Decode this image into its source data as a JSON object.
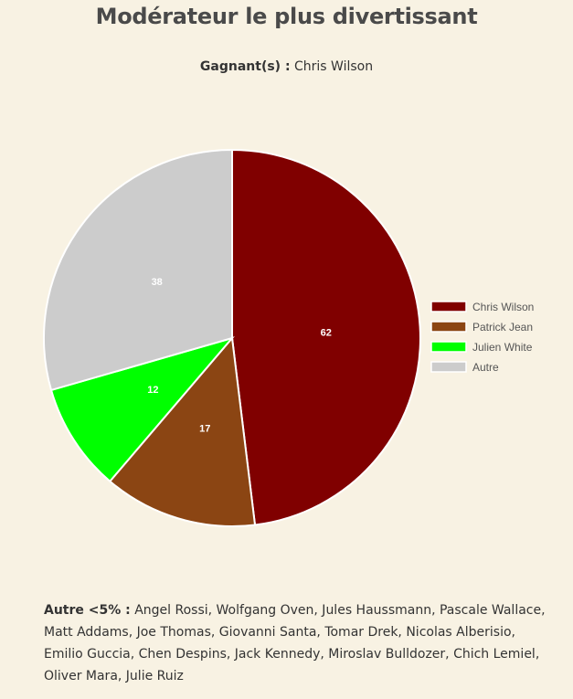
{
  "page": {
    "title": "Modérateur le plus divertissant",
    "winner_label": "Gagnant(s) :",
    "winner_value": "Chris Wilson",
    "others_label": "Autre <5% :",
    "others_value": "Angel Rossi, Wolfgang Oven, Jules Haussmann, Pascale Wallace, Matt Addams, Joe Thomas, Giovanni Santa, Tomar Drek, Nicolas Alberisio, Emilio Guccia, Chen Despins, Jack Kennedy, Miroslav Bulldozer, Chich Lemiel, Oliver Mara, Julie Ruiz"
  },
  "chart_data": {
    "type": "pie",
    "title": "",
    "legend_position": "right",
    "slices": [
      {
        "label": "Chris Wilson",
        "value": 62,
        "color": "#800000"
      },
      {
        "label": "Patrick Jean",
        "value": 17,
        "color": "#8b4513"
      },
      {
        "label": "Julien White",
        "value": 12,
        "color": "#00ff00"
      },
      {
        "label": "Autre",
        "value": 38,
        "color": "#cccccc"
      }
    ]
  }
}
